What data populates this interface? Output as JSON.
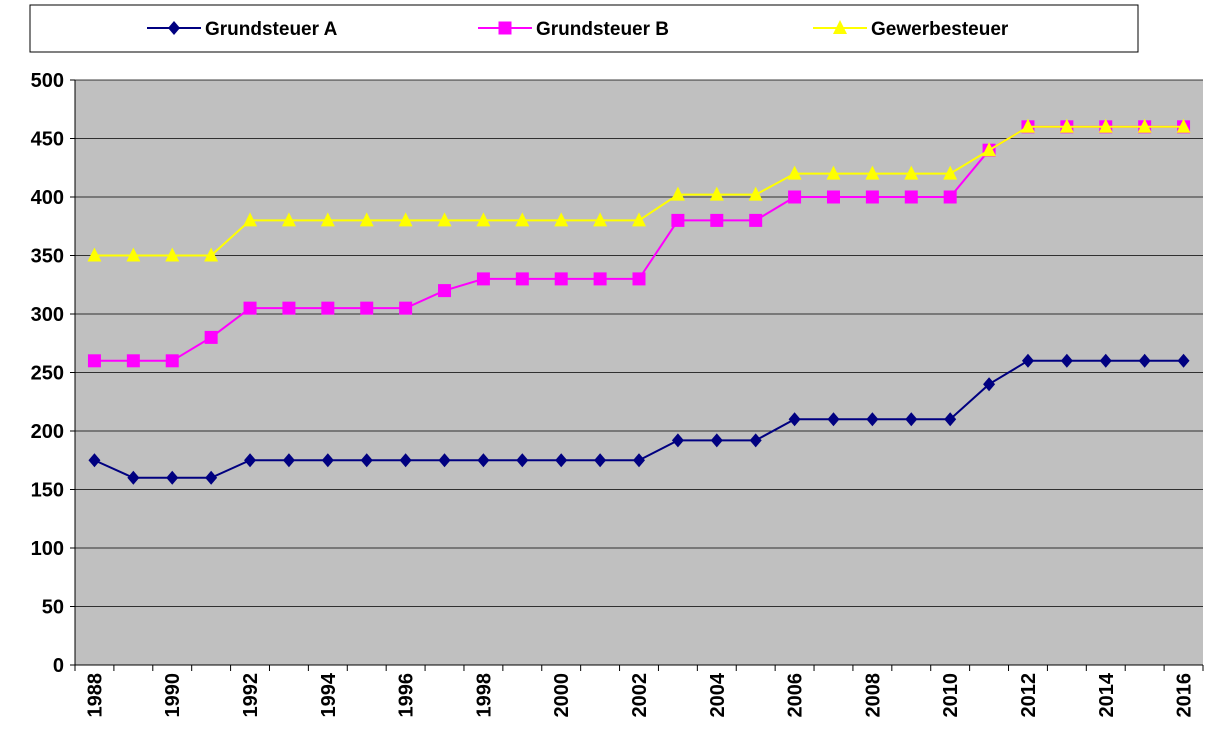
{
  "chart_data": {
    "type": "line",
    "categories": [
      "1988",
      null,
      "1990",
      null,
      "1992",
      null,
      "1994",
      null,
      "1996",
      null,
      "1998",
      null,
      "2000",
      null,
      "2002",
      null,
      "2004",
      null,
      "2006",
      null,
      "2008",
      null,
      "2010",
      null,
      "2012",
      null,
      "2014",
      null,
      "2016"
    ],
    "series": [
      {
        "name": "Grundsteuer A",
        "color": "#000080",
        "marker": "diamond",
        "values": [
          175,
          160,
          160,
          160,
          175,
          175,
          175,
          175,
          175,
          175,
          175,
          175,
          175,
          175,
          175,
          192,
          192,
          192,
          210,
          210,
          210,
          210,
          210,
          240,
          260,
          260,
          260,
          260,
          260
        ]
      },
      {
        "name": "Grundsteuer B",
        "color": "#ff00ff",
        "marker": "square",
        "values": [
          260,
          260,
          260,
          280,
          305,
          305,
          305,
          305,
          305,
          320,
          330,
          330,
          330,
          330,
          330,
          380,
          380,
          380,
          400,
          400,
          400,
          400,
          400,
          440,
          460,
          460,
          460,
          460,
          460
        ]
      },
      {
        "name": "Gewerbesteuer",
        "color": "#ffff00",
        "marker": "triangle",
        "values": [
          350,
          350,
          350,
          350,
          380,
          380,
          380,
          380,
          380,
          380,
          380,
          380,
          380,
          380,
          380,
          402,
          402,
          402,
          420,
          420,
          420,
          420,
          420,
          440,
          460,
          460,
          460,
          460,
          460
        ]
      }
    ],
    "ylim": [
      0,
      500
    ],
    "yticks": [
      0,
      50,
      100,
      150,
      200,
      250,
      300,
      350,
      400,
      450,
      500
    ],
    "grid": true,
    "plot_background": "#c0c0c0",
    "legend": "top"
  }
}
